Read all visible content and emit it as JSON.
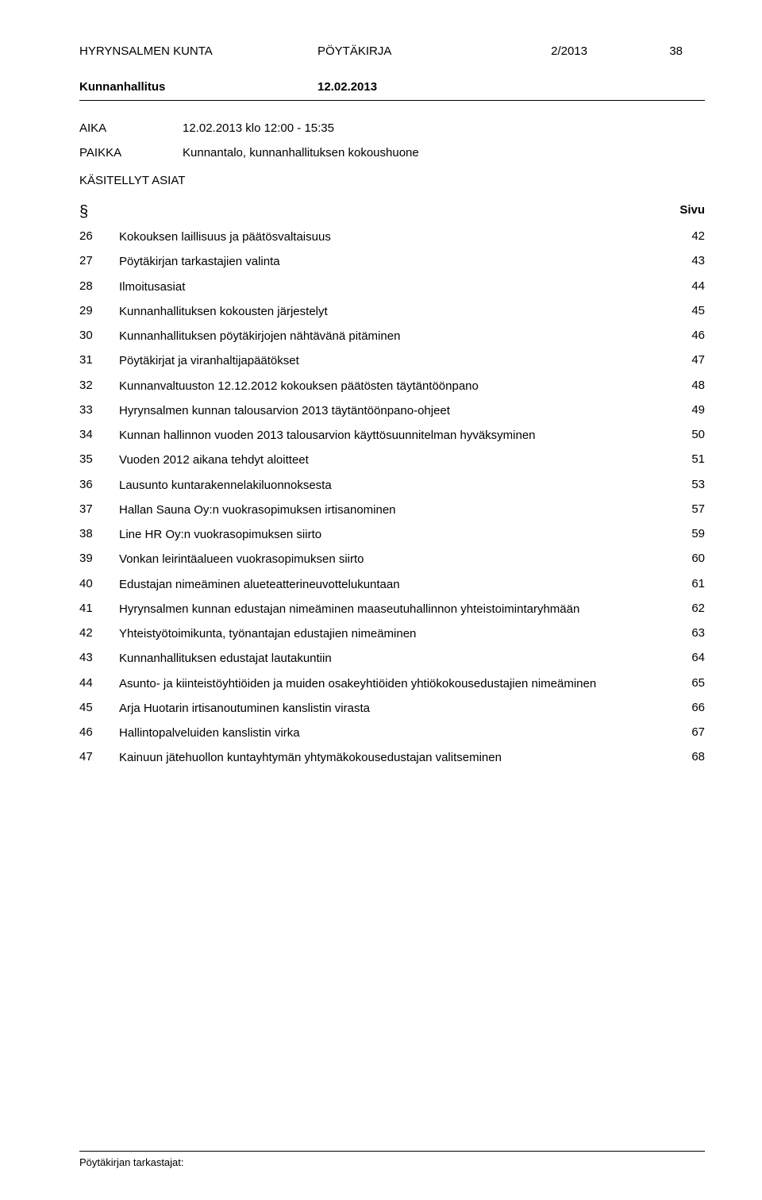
{
  "header": {
    "org": "HYRYNSALMEN KUNTA",
    "doctype": "PÖYTÄKIRJA",
    "docnum": "2/2013",
    "page": "38"
  },
  "committee": {
    "name": "Kunnanhallitus",
    "date": "12.02.2013"
  },
  "meta": {
    "time_label": "AIKA",
    "time_value": "12.02.2013 klo 12:00 - 15:35",
    "place_label": "PAIKKA",
    "place_value": "Kunnantalo, kunnanhallituksen kokoushuone"
  },
  "section_title": "KÄSITELLYT ASIAT",
  "toc_header": {
    "num": "§",
    "page": "Sivu"
  },
  "items": [
    {
      "n": "26",
      "t": "Kokouksen laillisuus ja päätösvaltaisuus",
      "p": "42"
    },
    {
      "n": "27",
      "t": "Pöytäkirjan tarkastajien valinta",
      "p": "43"
    },
    {
      "n": "28",
      "t": "Ilmoitusasiat",
      "p": "44"
    },
    {
      "n": "29",
      "t": "Kunnanhallituksen kokousten järjestelyt",
      "p": "45"
    },
    {
      "n": "30",
      "t": "Kunnanhallituksen pöytäkirjojen nähtävänä pitäminen",
      "p": "46"
    },
    {
      "n": "31",
      "t": "Pöytäkirjat ja viranhaltijapäätökset",
      "p": "47"
    },
    {
      "n": "32",
      "t": "Kunnanvaltuuston 12.12.2012 kokouksen päätösten täytäntöönpano",
      "p": "48"
    },
    {
      "n": "33",
      "t": "Hyrynsalmen kunnan talousarvion 2013 täytäntöönpano-ohjeet",
      "p": "49"
    },
    {
      "n": "34",
      "t": "Kunnan hallinnon vuoden 2013 talousarvion käyttösuunnitelman hyväksyminen",
      "p": "50"
    },
    {
      "n": "35",
      "t": "Vuoden 2012 aikana tehdyt aloitteet",
      "p": "51"
    },
    {
      "n": "36",
      "t": "Lausunto kuntarakennelakiluonnoksesta",
      "p": "53"
    },
    {
      "n": "37",
      "t": "Hallan Sauna Oy:n vuokrasopimuksen irtisanominen",
      "p": "57"
    },
    {
      "n": "38",
      "t": "Line HR Oy:n vuokrasopimuksen siirto",
      "p": "59"
    },
    {
      "n": "39",
      "t": "Vonkan leirintäalueen vuokrasopimuksen siirto",
      "p": "60"
    },
    {
      "n": "40",
      "t": "Edustajan nimeäminen alueteatterineuvottelukuntaan",
      "p": "61"
    },
    {
      "n": "41",
      "t": "Hyrynsalmen kunnan edustajan nimeäminen maaseutuhallinnon yhteistoimintaryhmään",
      "p": "62"
    },
    {
      "n": "42",
      "t": "Yhteistyötoimikunta, työnantajan edustajien nimeäminen",
      "p": "63"
    },
    {
      "n": "43",
      "t": "Kunnanhallituksen edustajat lautakuntiin",
      "p": "64"
    },
    {
      "n": "44",
      "t": "Asunto- ja kiinteistöyhtiöiden ja muiden osakeyhtiöiden yhtiökokousedustajien nimeäminen",
      "p": "65"
    },
    {
      "n": "45",
      "t": "Arja Huotarin irtisanoutuminen kanslistin virasta",
      "p": "66"
    },
    {
      "n": "46",
      "t": "Hallintopalveluiden kanslistin virka",
      "p": "67"
    },
    {
      "n": "47",
      "t": "Kainuun jätehuollon kuntayhtymän yhtymäkokousedustajan valitseminen",
      "p": "68"
    }
  ],
  "footer": "Pöytäkirjan tarkastajat:"
}
